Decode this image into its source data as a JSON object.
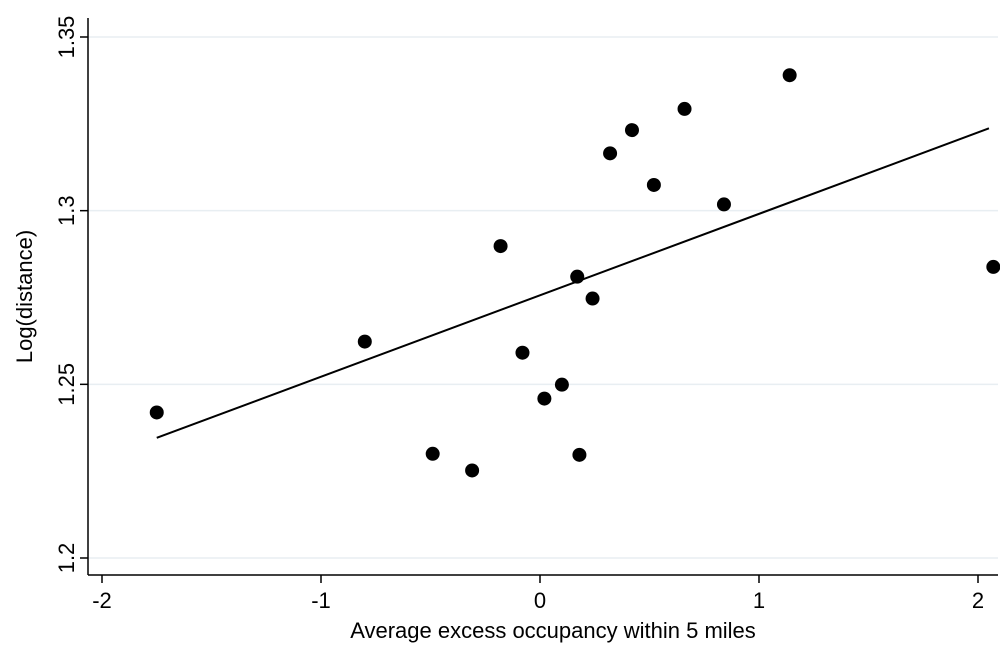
{
  "chart_data": {
    "type": "scatter",
    "title": "",
    "xlabel": "Average excess occupancy within 5 miles",
    "ylabel": "Log(distance)",
    "xlim": [
      -2,
      2.07
    ],
    "ylim": [
      1.2,
      1.35
    ],
    "xticks": [
      -2,
      -1,
      0,
      1,
      2
    ],
    "xtick_labels": [
      "-2",
      "-1",
      "0",
      "1",
      "2"
    ],
    "yticks": [
      1.2,
      1.25,
      1.3,
      1.35
    ],
    "ytick_labels": [
      "1.2",
      "1.25",
      "1.3",
      "1.35"
    ],
    "grid": "horizontal",
    "legend": "none",
    "points": [
      {
        "x": -1.75,
        "y": 1.2419
      },
      {
        "x": -0.8,
        "y": 1.2623
      },
      {
        "x": -0.49,
        "y": 1.23
      },
      {
        "x": -0.31,
        "y": 1.2252
      },
      {
        "x": -0.18,
        "y": 1.2898
      },
      {
        "x": -0.08,
        "y": 1.2591
      },
      {
        "x": 0.02,
        "y": 1.2459
      },
      {
        "x": 0.1,
        "y": 1.2499
      },
      {
        "x": 0.17,
        "y": 1.281
      },
      {
        "x": 0.18,
        "y": 1.2297
      },
      {
        "x": 0.24,
        "y": 1.2747
      },
      {
        "x": 0.32,
        "y": 1.3165
      },
      {
        "x": 0.42,
        "y": 1.3232
      },
      {
        "x": 0.52,
        "y": 1.3074
      },
      {
        "x": 0.66,
        "y": 1.3293
      },
      {
        "x": 0.84,
        "y": 1.3018
      },
      {
        "x": 1.14,
        "y": 1.339
      },
      {
        "x": 2.07,
        "y": 1.2838
      }
    ],
    "fit_line": {
      "x": [
        -1.75,
        2.05
      ],
      "y": [
        1.2346,
        1.3237
      ]
    },
    "colors": {
      "points": "#000000",
      "line": "#000000",
      "grid": "#e8eef2",
      "axis": "#000000"
    }
  }
}
